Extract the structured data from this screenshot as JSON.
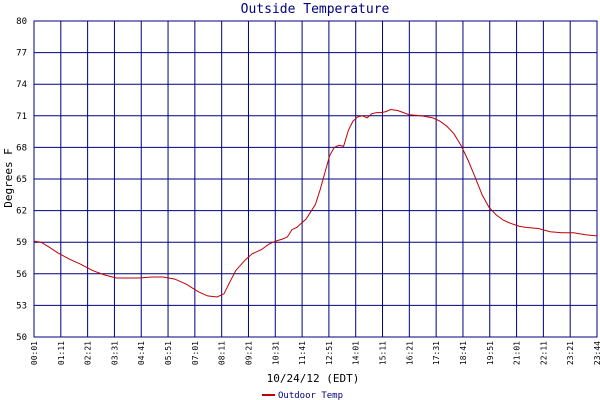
{
  "chart_data": {
    "type": "line",
    "title": "Outside Temperature",
    "xlabel": "10/24/12 (EDT)",
    "ylabel": "Degrees F",
    "ylim": [
      50,
      80
    ],
    "yticks": [
      "50",
      "53",
      "56",
      "59",
      "62",
      "65",
      "68",
      "71",
      "74",
      "77",
      "80"
    ],
    "xticks": [
      "00:01",
      "01:11",
      "02:21",
      "03:31",
      "04:41",
      "05:51",
      "07:01",
      "08:11",
      "09:21",
      "10:31",
      "11:41",
      "12:51",
      "14:01",
      "15:11",
      "16:21",
      "17:31",
      "18:41",
      "19:51",
      "21:01",
      "22:11",
      "23:21",
      "23:44"
    ],
    "grid": true,
    "legend_position": "bottom-left",
    "series": [
      {
        "name": "Outdoor Temp",
        "color": "#c00000",
        "x": [
          0.0,
          0.3,
          0.6,
          1.0,
          1.5,
          2.0,
          2.5,
          3.0,
          3.5,
          4.0,
          4.5,
          5.0,
          5.5,
          6.0,
          6.5,
          7.0,
          7.4,
          7.8,
          8.1,
          8.3,
          8.6,
          9.0,
          9.3,
          9.7,
          10.0,
          10.3,
          10.6,
          10.8,
          11.0,
          11.2,
          11.4,
          11.6,
          11.8,
          12.0,
          12.2,
          12.4,
          12.6,
          12.8,
          13.0,
          13.2,
          13.4,
          13.6,
          13.8,
          14.0,
          14.2,
          14.4,
          14.6,
          14.8,
          15.0,
          15.2,
          15.5,
          16.0,
          16.5,
          17.0,
          17.3,
          17.6,
          17.9,
          18.2,
          18.5,
          18.8,
          19.1,
          19.4,
          19.7,
          20.0,
          20.3,
          20.7,
          21.0,
          21.5,
          22.0,
          22.5,
          23.0,
          23.5,
          24.0
        ],
        "values": [
          59.1,
          59.0,
          58.6,
          58.0,
          57.4,
          56.9,
          56.3,
          55.9,
          55.6,
          55.6,
          55.6,
          55.7,
          55.7,
          55.5,
          55.0,
          54.3,
          53.9,
          53.8,
          54.1,
          55.0,
          56.3,
          57.3,
          57.9,
          58.3,
          58.8,
          59.1,
          59.3,
          59.5,
          60.2,
          60.4,
          60.8,
          61.2,
          61.9,
          62.6,
          64.0,
          65.6,
          67.2,
          68.0,
          68.2,
          68.1,
          69.6,
          70.5,
          70.9,
          71.0,
          70.8,
          71.2,
          71.3,
          71.3,
          71.4,
          71.6,
          71.5,
          71.1,
          71.0,
          70.8,
          70.5,
          70.0,
          69.3,
          68.2,
          66.8,
          65.2,
          63.5,
          62.3,
          61.6,
          61.1,
          60.8,
          60.5,
          60.4,
          60.3,
          60.0,
          59.9,
          59.9,
          59.7,
          59.6
        ]
      }
    ]
  }
}
